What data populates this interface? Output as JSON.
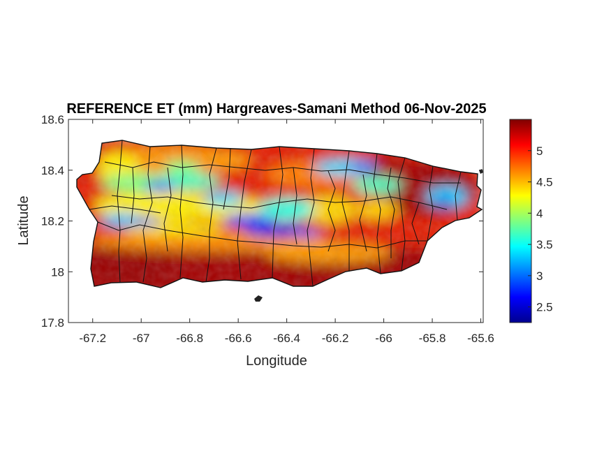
{
  "title": "REFERENCE ET (mm) Hargreaves-Samani Method  06-Nov-2025",
  "x_axis": {
    "label": "Longitude",
    "ticks": [
      -67.2,
      -67,
      -66.8,
      -66.6,
      -66.4,
      -66.2,
      -66,
      -65.8,
      -65.6
    ],
    "tick_labels": [
      "-67.2",
      "-67",
      "-66.8",
      "-66.6",
      "-66.4",
      "-66.2",
      "-66",
      "-65.8",
      "-65.6"
    ],
    "range": [
      -67.3,
      -65.59
    ]
  },
  "y_axis": {
    "label": "Latitude",
    "ticks": [
      17.8,
      18,
      18.2,
      18.4,
      18.6
    ],
    "tick_labels": [
      "17.8",
      "18",
      "18.2",
      "18.4",
      "18.6"
    ],
    "range": [
      17.8,
      18.6
    ]
  },
  "colorbar": {
    "colormap": "jet",
    "range": [
      2.25,
      5.5
    ],
    "ticks": [
      2.5,
      3,
      3.5,
      4,
      4.5,
      5
    ],
    "tick_labels": [
      "2.5",
      "3",
      "3.5",
      "4",
      "4.5",
      "5"
    ]
  },
  "map": {
    "region": "Puerto Rico",
    "variable": "Reference evapotranspiration (mm)",
    "pattern": "Low values (blue, ~2.3–3.5) along central mountain ridge; high values (dark red, ~5–5.5) along southern coast and northeast",
    "boundaries": "municipality outlines in black"
  }
}
